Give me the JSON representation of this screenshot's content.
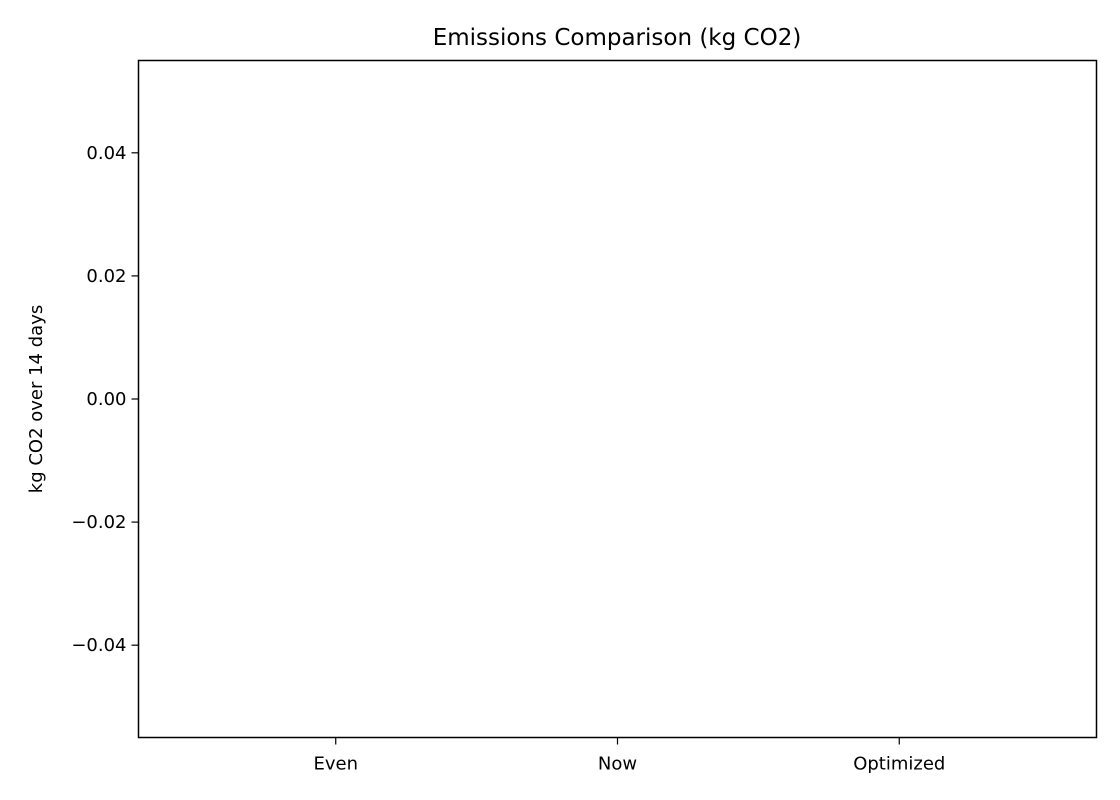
{
  "chart_data": {
    "type": "bar",
    "title": "Emissions Comparison (kg CO2)",
    "xlabel": "",
    "ylabel": "kg CO2 over 14 days",
    "categories": [
      "Even",
      "Now",
      "Optimized"
    ],
    "values": [
      0,
      0,
      0
    ],
    "ylim": [
      -0.055,
      0.055
    ],
    "yticks": [
      -0.04,
      -0.02,
      0.0,
      0.02,
      0.04
    ],
    "ytick_labels": [
      "−0.04",
      "−0.02",
      "0.00",
      "0.02",
      "0.04"
    ],
    "grid": false,
    "colors": {
      "axis": "#000000",
      "background": "#ffffff"
    }
  }
}
